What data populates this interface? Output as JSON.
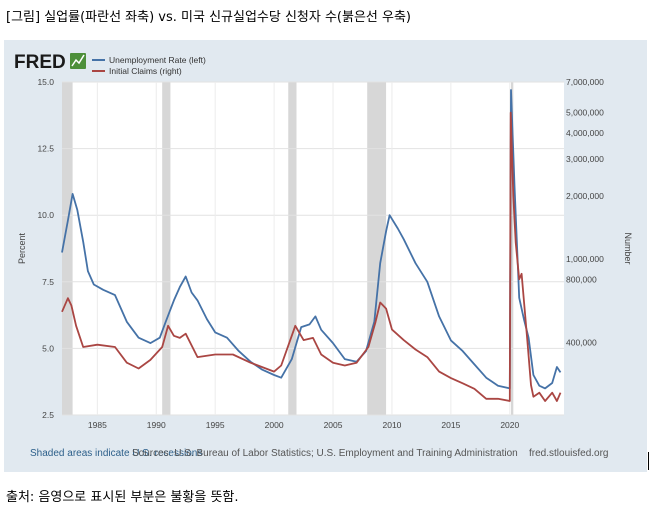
{
  "caption_top": "[그림] 실업률(파란선 좌축) vs. 미국 신규실업수당 신청자 수(붉은선 우축)",
  "caption_bottom": "출처: 음영으로 표시된 부분은 불황을 뜻함.",
  "chart_data": {
    "type": "line",
    "logo": "FRED",
    "series": [
      {
        "name": "Unemployment Rate (left)",
        "axis": "left",
        "color": "#4572a7",
        "points": [
          [
            1982.0,
            8.6
          ],
          [
            1982.5,
            9.8
          ],
          [
            1982.9,
            10.8
          ],
          [
            1983.3,
            10.2
          ],
          [
            1983.8,
            9.0
          ],
          [
            1984.2,
            7.9
          ],
          [
            1984.7,
            7.4
          ],
          [
            1985.5,
            7.2
          ],
          [
            1986.5,
            7.0
          ],
          [
            1987.5,
            6.0
          ],
          [
            1988.5,
            5.4
          ],
          [
            1989.5,
            5.2
          ],
          [
            1990.3,
            5.4
          ],
          [
            1990.8,
            6.0
          ],
          [
            1991.5,
            6.8
          ],
          [
            1992.0,
            7.3
          ],
          [
            1992.5,
            7.7
          ],
          [
            1993.0,
            7.1
          ],
          [
            1993.5,
            6.8
          ],
          [
            1994.3,
            6.1
          ],
          [
            1995.0,
            5.6
          ],
          [
            1996.0,
            5.4
          ],
          [
            1997.0,
            4.9
          ],
          [
            1998.0,
            4.5
          ],
          [
            1999.0,
            4.2
          ],
          [
            2000.0,
            4.0
          ],
          [
            2000.6,
            3.9
          ],
          [
            2001.5,
            4.6
          ],
          [
            2002.3,
            5.8
          ],
          [
            2003.0,
            5.9
          ],
          [
            2003.5,
            6.2
          ],
          [
            2004.0,
            5.7
          ],
          [
            2005.0,
            5.2
          ],
          [
            2006.0,
            4.6
          ],
          [
            2007.0,
            4.5
          ],
          [
            2007.8,
            4.9
          ],
          [
            2008.5,
            6.0
          ],
          [
            2009.0,
            8.2
          ],
          [
            2009.5,
            9.4
          ],
          [
            2009.8,
            10.0
          ],
          [
            2010.5,
            9.5
          ],
          [
            2011.0,
            9.1
          ],
          [
            2012.0,
            8.2
          ],
          [
            2013.0,
            7.5
          ],
          [
            2014.0,
            6.2
          ],
          [
            2015.0,
            5.3
          ],
          [
            2016.0,
            4.9
          ],
          [
            2017.0,
            4.4
          ],
          [
            2018.0,
            3.9
          ],
          [
            2019.0,
            3.6
          ],
          [
            2020.0,
            3.5
          ],
          [
            2020.1,
            14.7
          ],
          [
            2020.4,
            11.1
          ],
          [
            2020.8,
            6.9
          ],
          [
            2021.2,
            6.1
          ],
          [
            2021.6,
            5.4
          ],
          [
            2022.0,
            4.0
          ],
          [
            2022.5,
            3.6
          ],
          [
            2023.0,
            3.5
          ],
          [
            2023.6,
            3.7
          ],
          [
            2024.0,
            4.3
          ],
          [
            2024.3,
            4.1
          ]
        ]
      },
      {
        "name": "Initial Claims (right)",
        "axis": "right",
        "color": "#aa4643",
        "points": [
          [
            1982.0,
            560000
          ],
          [
            1982.5,
            650000
          ],
          [
            1982.8,
            600000
          ],
          [
            1983.2,
            480000
          ],
          [
            1983.8,
            380000
          ],
          [
            1985.0,
            390000
          ],
          [
            1986.5,
            380000
          ],
          [
            1987.5,
            320000
          ],
          [
            1988.5,
            300000
          ],
          [
            1989.5,
            330000
          ],
          [
            1990.5,
            380000
          ],
          [
            1991.0,
            480000
          ],
          [
            1991.5,
            430000
          ],
          [
            1992.0,
            420000
          ],
          [
            1992.5,
            440000
          ],
          [
            1993.5,
            340000
          ],
          [
            1995.0,
            350000
          ],
          [
            1996.5,
            350000
          ],
          [
            1998.0,
            320000
          ],
          [
            2000.0,
            290000
          ],
          [
            2000.6,
            310000
          ],
          [
            2001.3,
            400000
          ],
          [
            2001.8,
            480000
          ],
          [
            2002.5,
            410000
          ],
          [
            2003.3,
            420000
          ],
          [
            2004.0,
            350000
          ],
          [
            2005.0,
            320000
          ],
          [
            2006.0,
            310000
          ],
          [
            2007.0,
            320000
          ],
          [
            2008.0,
            380000
          ],
          [
            2008.6,
            500000
          ],
          [
            2009.0,
            620000
          ],
          [
            2009.5,
            580000
          ],
          [
            2010.0,
            460000
          ],
          [
            2011.0,
            410000
          ],
          [
            2012.0,
            370000
          ],
          [
            2013.0,
            340000
          ],
          [
            2014.0,
            290000
          ],
          [
            2015.0,
            270000
          ],
          [
            2016.0,
            255000
          ],
          [
            2017.0,
            240000
          ],
          [
            2018.0,
            215000
          ],
          [
            2019.0,
            215000
          ],
          [
            2020.0,
            210000
          ],
          [
            2020.08,
            5000000
          ],
          [
            2020.3,
            2000000
          ],
          [
            2020.5,
            1200000
          ],
          [
            2020.8,
            800000
          ],
          [
            2021.0,
            850000
          ],
          [
            2021.5,
            400000
          ],
          [
            2021.8,
            250000
          ],
          [
            2022.0,
            220000
          ],
          [
            2022.5,
            230000
          ],
          [
            2023.0,
            210000
          ],
          [
            2023.6,
            230000
          ],
          [
            2024.0,
            210000
          ],
          [
            2024.3,
            230000
          ]
        ]
      }
    ],
    "y_left": {
      "label": "Percent",
      "range": [
        2.5,
        15.0
      ],
      "ticks": [
        "2.5",
        "5.0",
        "7.5",
        "10.0",
        "12.5",
        "15.0"
      ]
    },
    "y_right": {
      "label": "Number",
      "scale": "log",
      "range": [
        180000,
        7000000
      ],
      "ticks": [
        [
          400000,
          "400,000"
        ],
        [
          800000,
          "800,000"
        ],
        [
          1000000,
          "1,000,000"
        ],
        [
          2000000,
          "2,000,000"
        ],
        [
          3000000,
          "3,000,000"
        ],
        [
          4000000,
          "4,000,000"
        ],
        [
          5000000,
          "5,000,000"
        ],
        [
          7000000,
          "7,000,000"
        ]
      ]
    },
    "x_axis": {
      "range": [
        1982.0,
        2024.6
      ],
      "ticks": [
        1985,
        1990,
        1995,
        2000,
        2005,
        2010,
        2015,
        2020
      ]
    },
    "recessions": [
      [
        1981.5,
        1982.9
      ],
      [
        1990.5,
        1991.2
      ],
      [
        2001.2,
        2001.9
      ],
      [
        2007.9,
        2009.5
      ],
      [
        2020.1,
        2020.3
      ]
    ],
    "grid": true,
    "legend": "top-left",
    "footer_left": "Shaded areas indicate U.S. recessions",
    "footer_source": "Sources: U.S. Bureau of Labor Statistics; U.S. Employment and Training Administration",
    "footer_right": "fred.stlouisfed.org"
  }
}
